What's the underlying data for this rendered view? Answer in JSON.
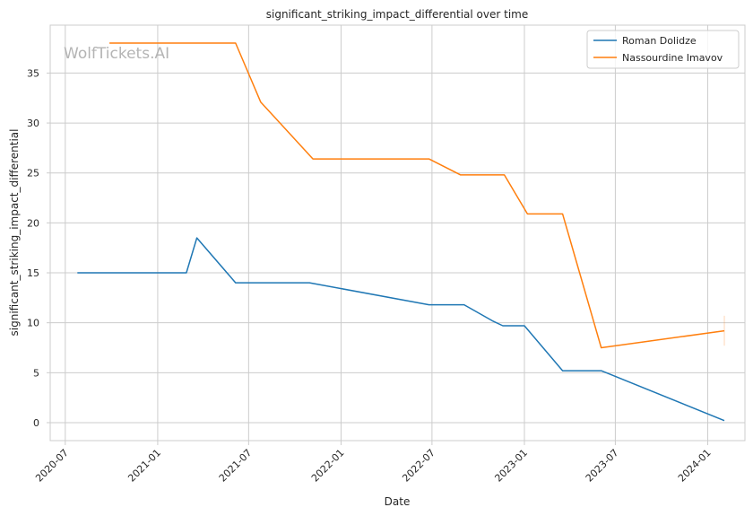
{
  "chart_data": {
    "type": "line",
    "title": "significant_striking_impact_differential over time",
    "xlabel": "Date",
    "ylabel": "significant_striking_impact_differential",
    "watermark": "WolfTickets.AI",
    "xlim": [
      "2020-06-01",
      "2024-03-15"
    ],
    "ylim": [
      -1.8,
      39.8
    ],
    "x_ticks": [
      "2020-07-01",
      "2021-01-01",
      "2021-07-01",
      "2022-01-01",
      "2022-07-01",
      "2023-01-01",
      "2023-07-01",
      "2024-01-01"
    ],
    "x_tick_labels": [
      "2020-07",
      "2021-01",
      "2021-07",
      "2022-01",
      "2022-07",
      "2023-01",
      "2023-07",
      "2024-01"
    ],
    "y_ticks": [
      0,
      5,
      10,
      15,
      20,
      25,
      30,
      35
    ],
    "y_tick_labels": [
      "0",
      "5",
      "10",
      "15",
      "20",
      "25",
      "30",
      "35"
    ],
    "grid": true,
    "legend_position": "top-right",
    "series": [
      {
        "name": "Roman Dolidze",
        "color": "#1f77b4",
        "points": [
          [
            "2020-07-25",
            15.0
          ],
          [
            "2021-02-27",
            15.0
          ],
          [
            "2021-03-20",
            18.5
          ],
          [
            "2021-06-05",
            14.0
          ],
          [
            "2021-10-30",
            14.0
          ],
          [
            "2022-06-25",
            11.8
          ],
          [
            "2022-09-03",
            11.8
          ],
          [
            "2022-10-29",
            10.2
          ],
          [
            "2022-11-19",
            9.7
          ],
          [
            "2023-01-01",
            9.7
          ],
          [
            "2023-03-18",
            5.2
          ],
          [
            "2023-06-03",
            5.2
          ],
          [
            "2024-02-03",
            0.2
          ]
        ]
      },
      {
        "name": "Nassourdine Imavov",
        "color": "#ff7f0e",
        "points": [
          [
            "2020-09-27",
            38.0
          ],
          [
            "2021-06-05",
            38.0
          ],
          [
            "2021-07-25",
            32.1
          ],
          [
            "2021-11-06",
            26.4
          ],
          [
            "2022-06-25",
            26.4
          ],
          [
            "2022-08-27",
            24.8
          ],
          [
            "2022-11-22",
            24.8
          ],
          [
            "2023-01-07",
            20.9
          ],
          [
            "2023-03-18",
            20.9
          ],
          [
            "2023-06-03",
            7.5
          ],
          [
            "2024-02-03",
            9.2
          ]
        ]
      }
    ]
  }
}
